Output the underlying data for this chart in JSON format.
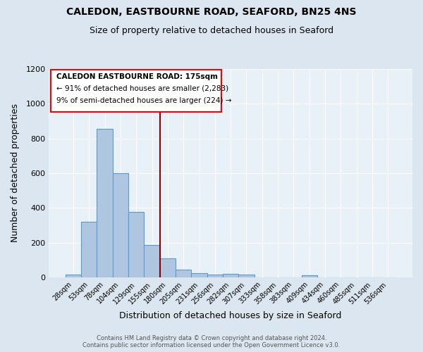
{
  "title": "CALEDON, EASTBOURNE ROAD, SEAFORD, BN25 4NS",
  "subtitle": "Size of property relative to detached houses in Seaford",
  "xlabel": "Distribution of detached houses by size in Seaford",
  "ylabel": "Number of detached properties",
  "footer_line1": "Contains HM Land Registry data © Crown copyright and database right 2024.",
  "footer_line2": "Contains public sector information licensed under the Open Government Licence v3.0.",
  "annotation_title": "CALEDON EASTBOURNE ROAD: 175sqm",
  "annotation_line1": "← 91% of detached houses are smaller (2,283)",
  "annotation_line2": "9% of semi-detached houses are larger (224) →",
  "categories": [
    "28sqm",
    "53sqm",
    "78sqm",
    "104sqm",
    "129sqm",
    "155sqm",
    "180sqm",
    "205sqm",
    "231sqm",
    "256sqm",
    "282sqm",
    "307sqm",
    "333sqm",
    "358sqm",
    "383sqm",
    "409sqm",
    "434sqm",
    "460sqm",
    "485sqm",
    "511sqm",
    "536sqm"
  ],
  "values": [
    15,
    320,
    855,
    600,
    375,
    185,
    110,
    45,
    22,
    15,
    20,
    15,
    0,
    0,
    0,
    10,
    0,
    0,
    0,
    0,
    0
  ],
  "bar_color": "#aec6df",
  "bar_edge_color": "#5b9bd5",
  "vline_position": 5.5,
  "vline_color": "#8b0000",
  "background_color": "#dce6f0",
  "plot_bg_color": "#e8f0f8",
  "grid_color": "#ffffff",
  "ylim": [
    0,
    1200
  ],
  "yticks": [
    0,
    200,
    400,
    600,
    800,
    1000,
    1200
  ]
}
